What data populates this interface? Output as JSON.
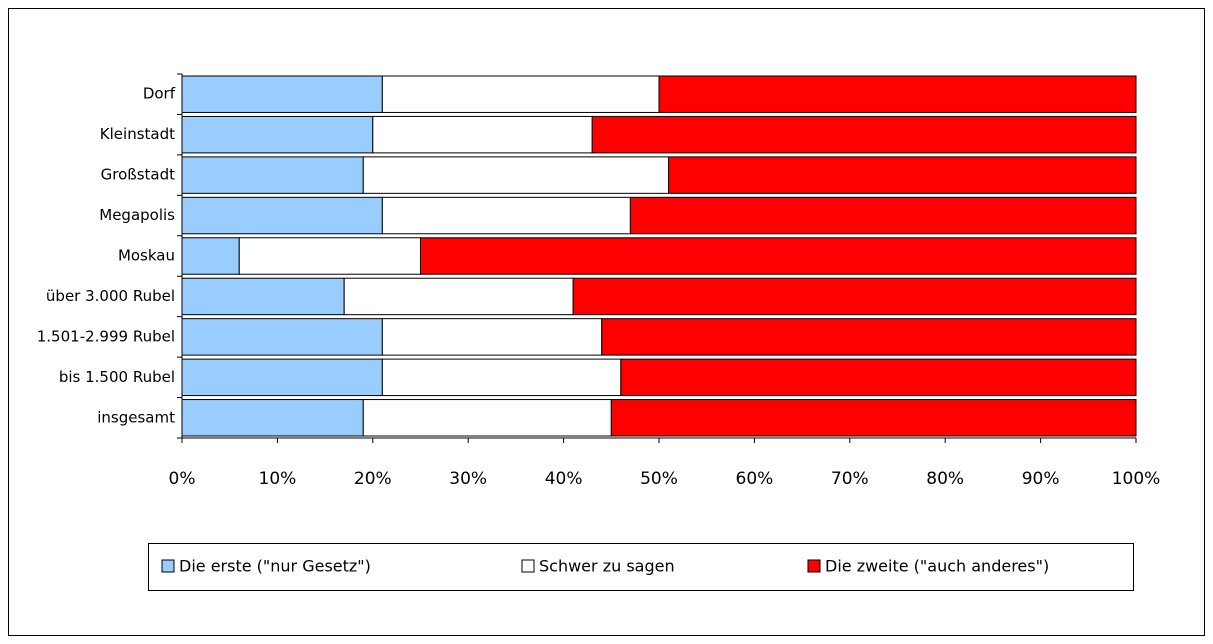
{
  "chart_data": {
    "type": "stacked-barh",
    "categories": [
      "Dorf",
      "Kleinstadt",
      "Großstadt",
      "Megapolis",
      "Moskau",
      "über 3.000 Rubel",
      "1.501-2.999 Rubel",
      "bis 1.500 Rubel",
      "insgesamt"
    ],
    "series": [
      {
        "name": "Die erste (\"nur Gesetz\")",
        "color": "#99ccff",
        "values": [
          21,
          20,
          19,
          21,
          6,
          17,
          21,
          21,
          19
        ]
      },
      {
        "name": "Schwer zu sagen",
        "color": "#ffffff",
        "values": [
          29,
          23,
          32,
          26,
          19,
          24,
          23,
          25,
          26
        ]
      },
      {
        "name": "Die zweite (\"auch anderes\")",
        "color": "#ff0000",
        "values": [
          50,
          57,
          49,
          53,
          75,
          59,
          56,
          54,
          55
        ]
      }
    ],
    "xlim": [
      0,
      100
    ],
    "xticks": [
      {
        "value": 0,
        "label": "0%"
      },
      {
        "value": 10,
        "label": "10%"
      },
      {
        "value": 20,
        "label": "20%"
      },
      {
        "value": 30,
        "label": "30%"
      },
      {
        "value": 40,
        "label": "40%"
      },
      {
        "value": 50,
        "label": "50%"
      },
      {
        "value": 60,
        "label": "60%"
      },
      {
        "value": 70,
        "label": "70%"
      },
      {
        "value": 80,
        "label": "80%"
      },
      {
        "value": 90,
        "label": "90%"
      },
      {
        "value": 100,
        "label": "100%"
      }
    ],
    "grid": false,
    "legend": "bottom"
  }
}
